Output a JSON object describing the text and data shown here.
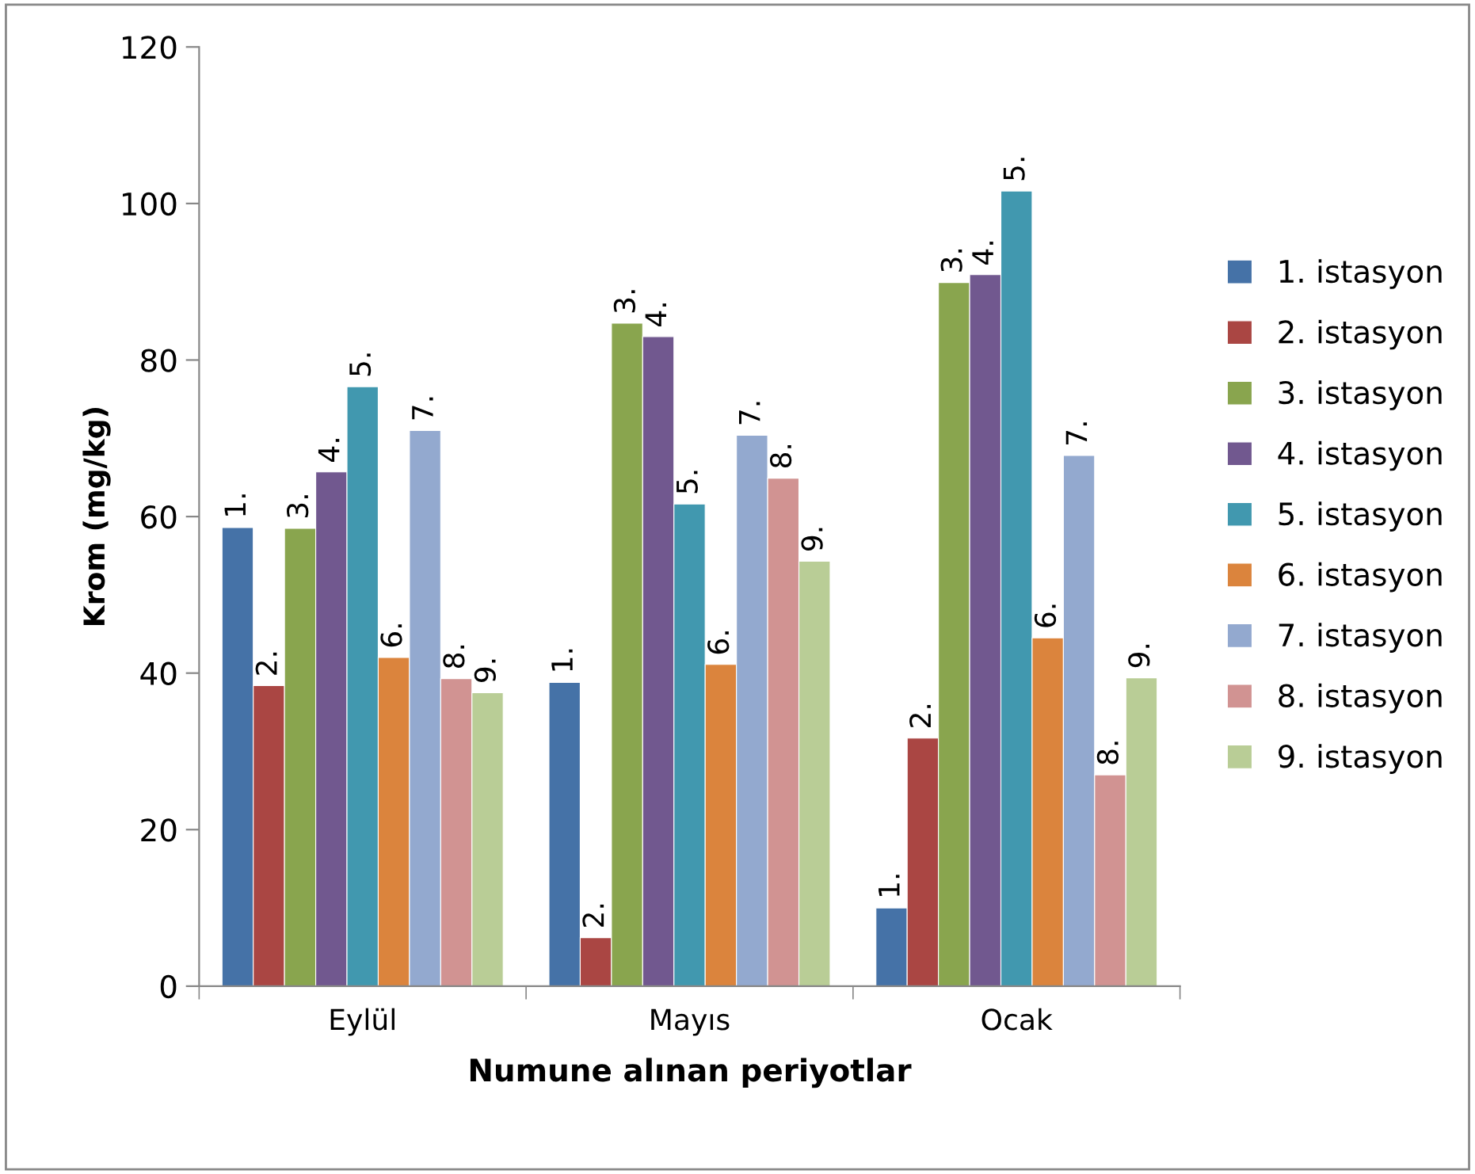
{
  "chart_data": {
    "type": "bar",
    "xlabel": "Numune alınan periyotlar",
    "ylabel": "Krom (mg/kg)",
    "categories": [
      "Eylül",
      "Mayıs",
      "Ocak"
    ],
    "ylim": [
      0,
      120
    ],
    "yticks": [
      0,
      20,
      40,
      60,
      80,
      100,
      120
    ],
    "grid": false,
    "legend": "right",
    "series": [
      {
        "name": "1. istasyon",
        "color": "#4572a7",
        "values": [
          58.6,
          38.8,
          10.0
        ]
      },
      {
        "name": "2. istasyon",
        "color": "#aa4643",
        "values": [
          38.4,
          6.2,
          31.7
        ]
      },
      {
        "name": "3. istasyon",
        "color": "#89a54e",
        "values": [
          58.5,
          84.7,
          89.9
        ]
      },
      {
        "name": "4. istasyon",
        "color": "#71588f",
        "values": [
          65.7,
          83.0,
          90.9
        ]
      },
      {
        "name": "5. istasyon",
        "color": "#4198af",
        "values": [
          76.6,
          61.6,
          101.6
        ]
      },
      {
        "name": "6. istasyon",
        "color": "#db843d",
        "values": [
          42.0,
          41.1,
          44.5
        ]
      },
      {
        "name": "7. istasyon",
        "color": "#93a9cf",
        "values": [
          71.0,
          70.4,
          67.8
        ]
      },
      {
        "name": "8. istasyon",
        "color": "#d19392",
        "values": [
          39.3,
          64.9,
          27.0
        ]
      },
      {
        "name": "9. istasyon",
        "color": "#b9cd96",
        "values": [
          37.5,
          54.3,
          39.4
        ]
      }
    ],
    "annotations": [
      "1.",
      "1.",
      "1.",
      "2.",
      "2.",
      "2.",
      "3.",
      "3.",
      "3.",
      "4.",
      "4.",
      "4.",
      "5.",
      "5.",
      "5.",
      "6.",
      "6.",
      "6.",
      "7.",
      "7.",
      "7.",
      "8.",
      "8.",
      "8.",
      "9.",
      "9.",
      "9."
    ]
  }
}
